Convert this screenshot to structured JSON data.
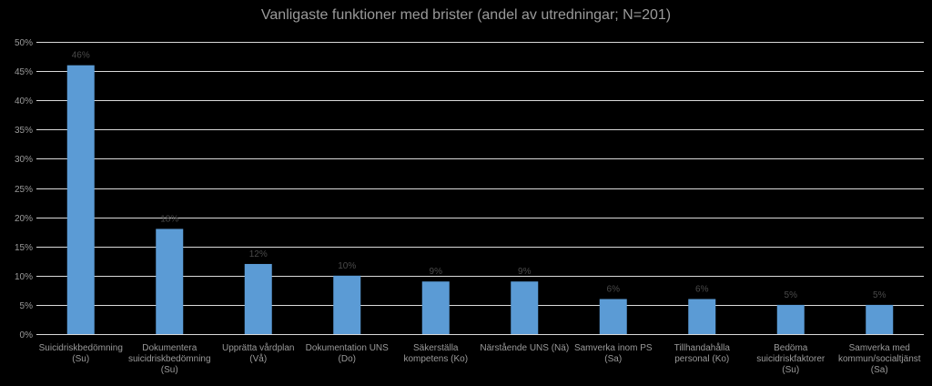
{
  "chart_data": {
    "type": "bar",
    "title": "Vanligaste funktioner med brister (andel av utredningar; N=201)",
    "xlabel": "",
    "ylabel": "",
    "ylim": [
      0,
      50
    ],
    "yticks": [
      "0%",
      "5%",
      "10%",
      "15%",
      "20%",
      "25%",
      "30%",
      "35%",
      "40%",
      "45%",
      "50%"
    ],
    "grid": true,
    "categories": [
      [
        "Suicidriskbedömning",
        "(Su)"
      ],
      [
        "Dokumentera",
        "suicidriskbedömning",
        "(Su)"
      ],
      [
        "Upprätta vårdplan",
        "(Vå)"
      ],
      [
        "Dokumentation UNS",
        "(Do)"
      ],
      [
        "Säkerställa",
        "kompetens (Ko)"
      ],
      [
        "Närstående UNS (Nä)"
      ],
      [
        "Samverka inom PS",
        "(Sa)"
      ],
      [
        "Tillhandahålla",
        "personal (Ko)"
      ],
      [
        "Bedöma",
        "suicidriskfaktorer",
        "(Su)"
      ],
      [
        "Samverka med",
        "kommun/socialtjänst",
        "(Sa)"
      ]
    ],
    "values": [
      46,
      18,
      12,
      10,
      9,
      9,
      6,
      6,
      5,
      5
    ],
    "data_labels": [
      "46%",
      "18%",
      "12%",
      "10%",
      "9%",
      "9%",
      "6%",
      "6%",
      "5%",
      "5%"
    ],
    "bar_color": "#5b9bd5",
    "grid_color": "#d9d9d9",
    "text_color": "#9a9a9a",
    "data_label_color": "#4a4a4a"
  }
}
